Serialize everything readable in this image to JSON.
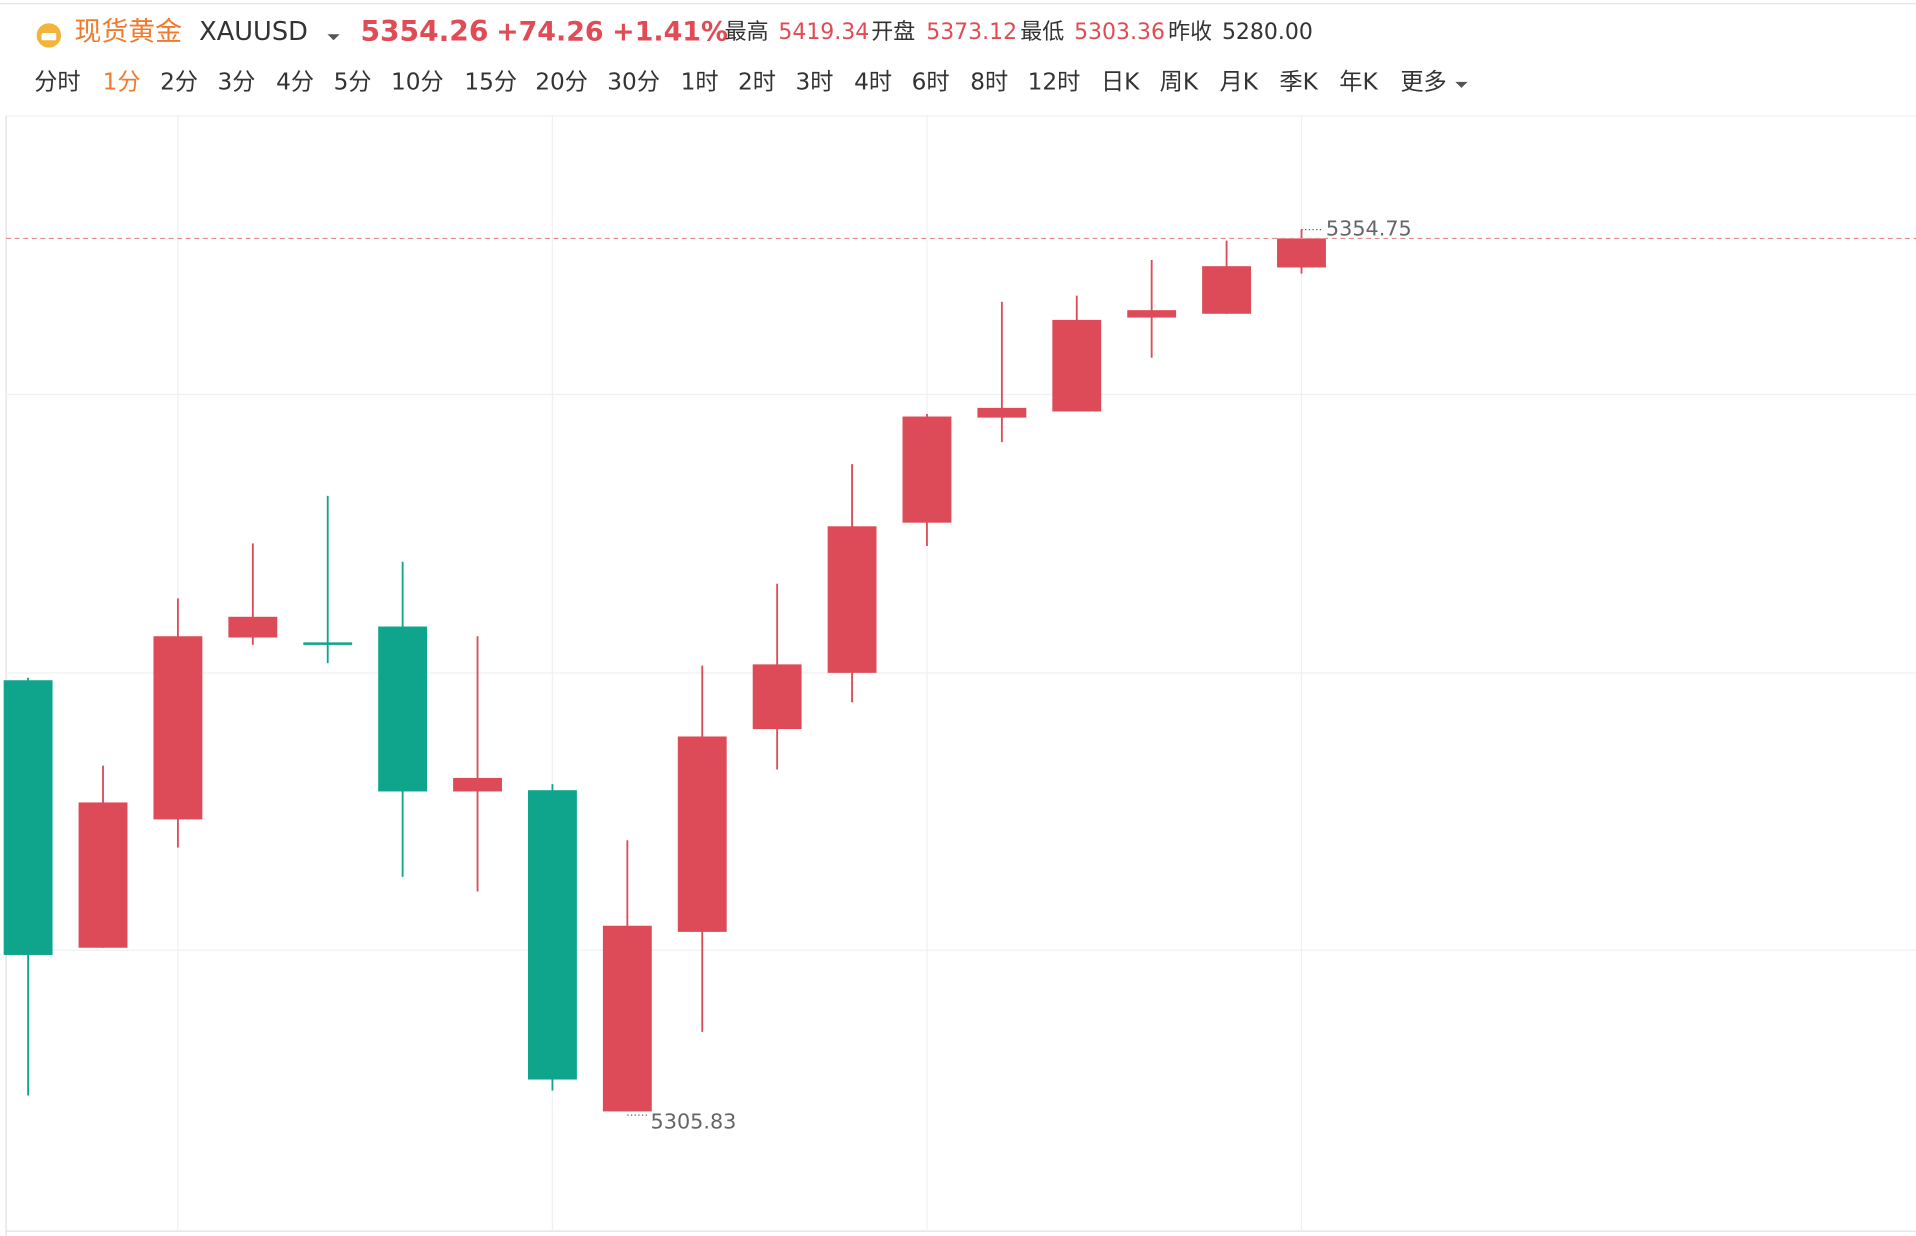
{
  "header": {
    "instrument_name": "现货黄金",
    "symbol": "XAUUSD",
    "price": "5354.26",
    "change": "+74.26",
    "change_pct": "+1.41%",
    "stats": [
      {
        "label": "最高",
        "value": "5419.34"
      },
      {
        "label": "开盘",
        "value": "5373.12"
      },
      {
        "label": "最低",
        "value": "5303.36"
      },
      {
        "label": "昨收",
        "value": "5280.00"
      }
    ]
  },
  "timeframes": {
    "items": [
      "分时",
      "1分",
      "2分",
      "3分",
      "4分",
      "5分",
      "10分",
      "15分",
      "20分",
      "30分",
      "1时",
      "2时",
      "3时",
      "4时",
      "6时",
      "8时",
      "12时",
      "日K",
      "周K",
      "月K",
      "季K",
      "年K",
      "更多"
    ],
    "active": 1
  },
  "chart_data": {
    "type": "candlestick",
    "open": [
      5329.75,
      5314.91,
      5322.03,
      5332.12,
      5331.85,
      5332.73,
      5323.58,
      5323.65,
      5305.83,
      5315.79,
      5327.04,
      5330.16,
      5338.49,
      5344.32,
      5344.66,
      5349.87,
      5350.08,
      5352.65
    ],
    "high": [
      5329.89,
      5325.01,
      5334.29,
      5337.34,
      5339.98,
      5336.32,
      5332.19,
      5323.99,
      5320.87,
      5330.56,
      5335.1,
      5341.74,
      5344.52,
      5350.75,
      5351.09,
      5353.06,
      5354.14,
      5354.75
    ],
    "low": [
      5306.71,
      5314.91,
      5320.47,
      5331.71,
      5330.7,
      5318.84,
      5318.03,
      5306.99,
      5305.83,
      5310.24,
      5324.8,
      5328.53,
      5337.2,
      5342.96,
      5344.66,
      5347.64,
      5350.08,
      5352.31
    ],
    "close": [
      5314.51,
      5322.97,
      5332.19,
      5333.27,
      5331.71,
      5323.58,
      5324.33,
      5307.6,
      5316.13,
      5326.63,
      5330.63,
      5338.29,
      5344.38,
      5344.86,
      5349.74,
      5350.28,
      5352.72,
      5354.26
    ],
    "ylim": [
      5299.19,
      5361.05
    ],
    "up_color": "#dc4b57",
    "down_color": "#0ea58c"
  }
}
